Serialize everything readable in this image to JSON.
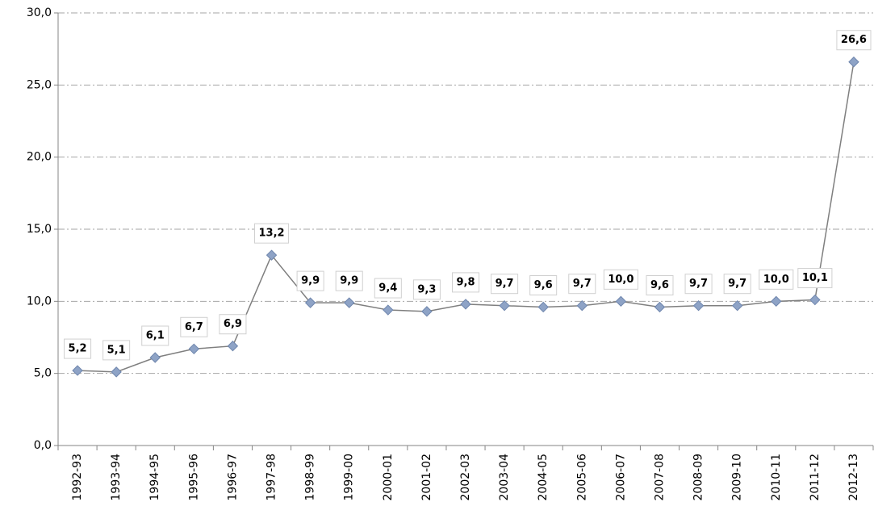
{
  "chart_data": {
    "type": "line",
    "categories": [
      "1992-93",
      "1993-94",
      "1994-95",
      "1995-96",
      "1996-97",
      "1997-98",
      "1998-99",
      "1999-00",
      "2000-01",
      "2001-02",
      "2002-03",
      "2003-04",
      "2004-05",
      "2005-06",
      "2006-07",
      "2007-08",
      "2008-09",
      "2009-10",
      "2010-11",
      "2011-12",
      "2012-13"
    ],
    "series": [
      {
        "color": "#7f7f7f",
        "marker_color": "#8ea3c6",
        "values": [
          5.2,
          5.1,
          6.1,
          6.7,
          6.9,
          13.2,
          9.9,
          9.9,
          9.4,
          9.3,
          9.8,
          9.7,
          9.6,
          9.7,
          10.0,
          9.6,
          9.7,
          9.7,
          10.0,
          10.1,
          26.6
        ],
        "value_labels": [
          "5,2",
          "5,1",
          "6,1",
          "6,7",
          "6,9",
          "13,2",
          "9,9",
          "9,9",
          "9,4",
          "9,3",
          "9,8",
          "9,7",
          "9,6",
          "9,7",
          "10,0",
          "9,6",
          "9,7",
          "9,7",
          "10,0",
          "10,1",
          "26,6"
        ]
      }
    ],
    "ylim": [
      0,
      30
    ],
    "yticks": [
      {
        "value": 0,
        "label": "0,0"
      },
      {
        "value": 5,
        "label": "5,0"
      },
      {
        "value": 10,
        "label": "10,0"
      },
      {
        "value": 15,
        "label": "15,0"
      },
      {
        "value": 20,
        "label": "20,0"
      },
      {
        "value": 25,
        "label": "25,0"
      },
      {
        "value": 30,
        "label": "30,0"
      }
    ],
    "grid": true
  }
}
